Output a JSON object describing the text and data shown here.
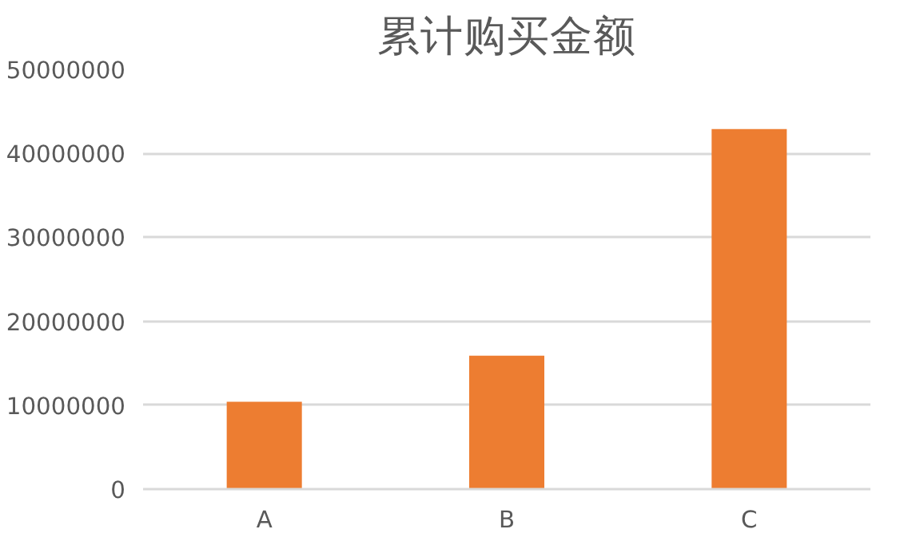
{
  "chart_data": {
    "type": "bar",
    "title": "累计购买金额",
    "categories": [
      "A",
      "B",
      "C"
    ],
    "values": [
      10400000,
      15900000,
      42900000
    ],
    "color": "#ed7d31",
    "ylim": [
      0,
      50000000
    ],
    "yticks": [
      0,
      10000000,
      20000000,
      30000000,
      40000000,
      50000000
    ],
    "grid": "y"
  }
}
